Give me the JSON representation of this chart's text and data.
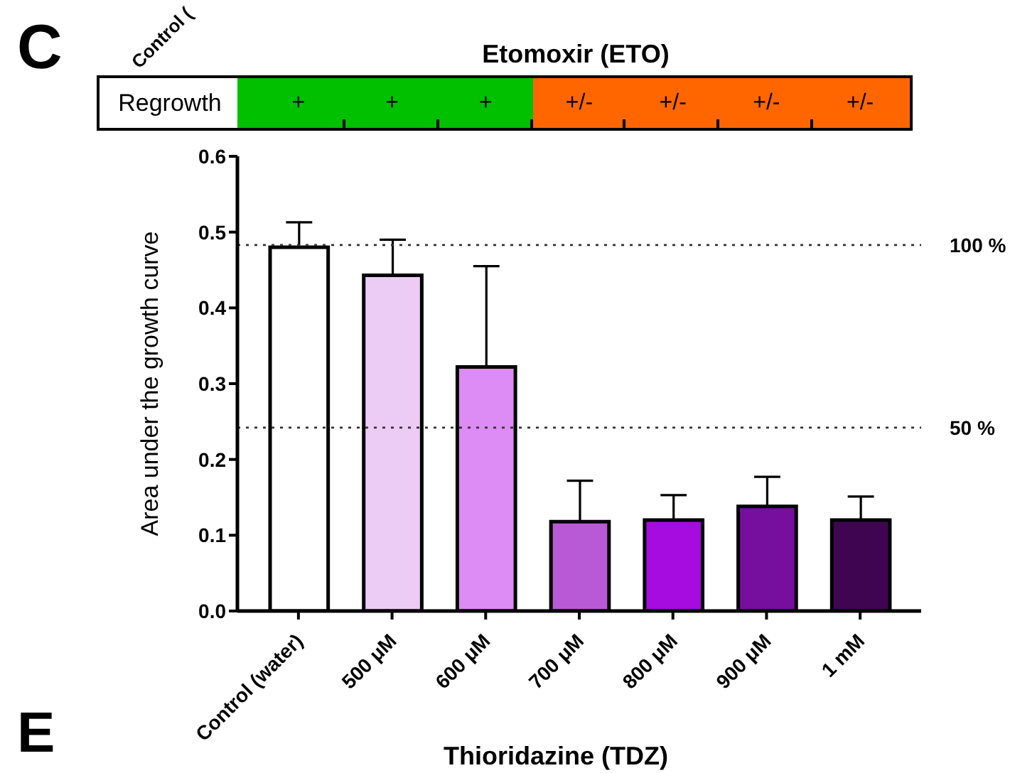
{
  "chart_data": {
    "type": "bar",
    "title": "Etomoxir (ETO)",
    "ylabel": "Area under the growth curve",
    "categories": [
      "Control (water)",
      "500 μM",
      "600 μM",
      "700 μM",
      "800 μM",
      "900 μM",
      "1 mM"
    ],
    "values": [
      0.48,
      0.443,
      0.322,
      0.118,
      0.12,
      0.138,
      0.12
    ],
    "colors": [
      "#ffffff",
      "#eccbf5",
      "#dd8bf5",
      "#b85ad6",
      "#a60be0",
      "#760e9e",
      "#3f0550"
    ],
    "errors": [
      [
        0.48,
        0.513
      ],
      [
        0.443,
        0.49
      ],
      [
        0.322,
        0.455
      ],
      [
        0.118,
        0.172
      ],
      [
        0.12,
        0.153
      ],
      [
        0.138,
        0.177
      ],
      [
        0.12,
        0.151
      ]
    ],
    "ylim": [
      0,
      0.6
    ],
    "yticks": [
      {
        "value": 0,
        "label": "0.0"
      },
      {
        "value": 0.1,
        "label": "0.1"
      },
      {
        "value": 0.2,
        "label": "0.2"
      },
      {
        "value": 0.3,
        "label": "0.3"
      },
      {
        "value": 0.4,
        "label": "0.4"
      },
      {
        "value": 0.5,
        "label": "0.5"
      },
      {
        "value": 0.6,
        "label": "0.6"
      }
    ],
    "ref_lines": [
      {
        "axis": "y",
        "value": 0.483,
        "line_style": "dotted"
      },
      {
        "axis": "y",
        "value": 0.242,
        "line_style": "dotted"
      }
    ],
    "annotations": [
      "C",
      "Control (",
      "Regrowth",
      "+",
      "+",
      "+",
      "+/-",
      "+/-",
      "+/-",
      "+/-",
      "E",
      "Thioridazine (TDZ)",
      "100 %",
      "50 %"
    ],
    "grid": false
  }
}
